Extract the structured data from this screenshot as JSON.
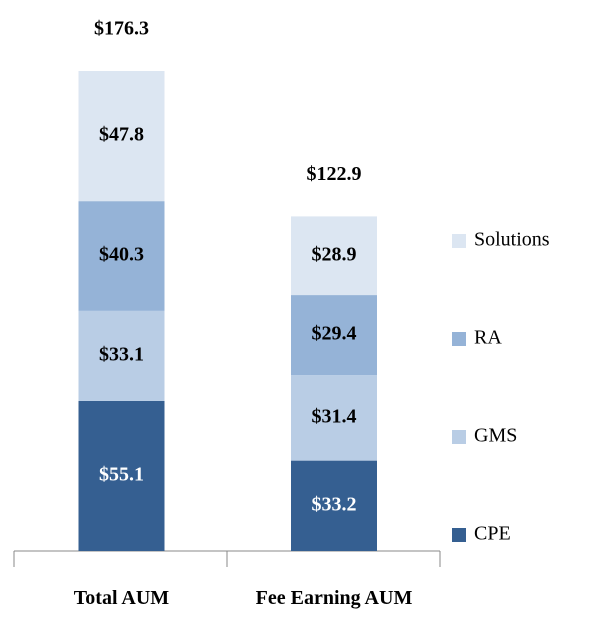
{
  "chart_data": {
    "type": "stacked_bar",
    "categories": [
      "Total AUM",
      "Fee Earning AUM"
    ],
    "series": [
      {
        "name": "CPE",
        "color": "#355f91",
        "values": [
          55.1,
          33.2
        ],
        "value_labels": [
          "$55.1",
          "$33.2"
        ],
        "label_color": "#ffffff"
      },
      {
        "name": "GMS",
        "color": "#b9cde5",
        "values": [
          33.1,
          31.4
        ],
        "value_labels": [
          "$33.1",
          "$31.4"
        ],
        "label_color": "#000000"
      },
      {
        "name": "RA",
        "color": "#95b3d7",
        "values": [
          40.3,
          29.4
        ],
        "value_labels": [
          "$40.3",
          "$29.4"
        ],
        "label_color": "#000000"
      },
      {
        "name": "Solutions",
        "color": "#dce6f2",
        "values": [
          47.8,
          28.9
        ],
        "value_labels": [
          "$47.8",
          "$28.9"
        ],
        "label_color": "#000000"
      }
    ],
    "totals": [
      176.3,
      122.9
    ],
    "total_labels": [
      "$176.3",
      "$122.9"
    ],
    "legend": "right"
  }
}
